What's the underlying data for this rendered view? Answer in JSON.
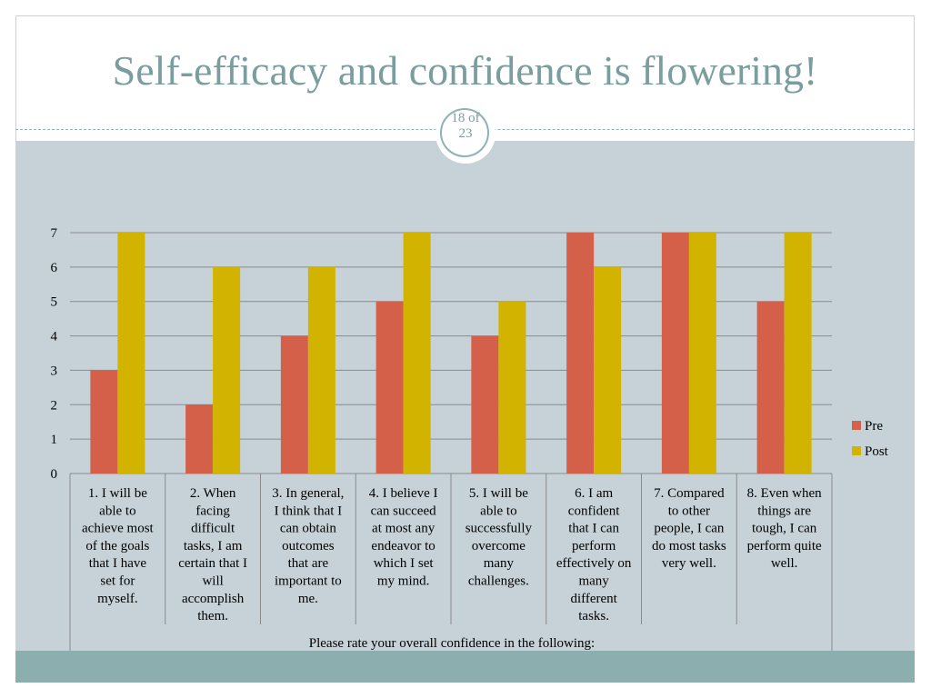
{
  "slide": {
    "title": "Self-efficacy and confidence is flowering!",
    "page_current": "18 of",
    "page_total": "23"
  },
  "colors": {
    "pre": "#d4604a",
    "post": "#d2b400",
    "title": "#7a9da0",
    "panel": "#c6d2d8",
    "band": "#8daeae"
  },
  "chart_data": {
    "type": "bar",
    "xlabel": "Please rate your overall confidence in the following:",
    "ylabel": "",
    "ylim": [
      0,
      7
    ],
    "yticks": [
      "0",
      "1",
      "2",
      "3",
      "4",
      "5",
      "6",
      "7"
    ],
    "grid": true,
    "legend_position": "right",
    "categories": [
      [
        "1. I will be",
        "able to",
        "achieve most",
        "of the goals",
        "that I have",
        "set for",
        "myself."
      ],
      [
        "2. When",
        "facing",
        "difficult",
        "tasks, I am",
        "certain that I",
        "will",
        "accomplish",
        "them."
      ],
      [
        "3. In general,",
        "I think that I",
        "can obtain",
        "outcomes",
        "that are",
        "important to",
        "me."
      ],
      [
        "4. I believe I",
        "can succeed",
        "at most any",
        "endeavor to",
        "which I set",
        "my mind."
      ],
      [
        "5. I will be",
        "able to",
        "successfully",
        "overcome",
        "many",
        "challenges."
      ],
      [
        "6. I am",
        "confident",
        "that I can",
        "perform",
        "effectively on",
        "many",
        "different",
        "tasks."
      ],
      [
        "7. Compared",
        "to other",
        "people, I can",
        "do most tasks",
        "very well."
      ],
      [
        "8. Even when",
        "things are",
        "tough, I can",
        "perform quite",
        "well."
      ]
    ],
    "series": [
      {
        "name": "Pre",
        "values": [
          3,
          2,
          4,
          5,
          4,
          7,
          7,
          5
        ]
      },
      {
        "name": "Post",
        "values": [
          7,
          6,
          6,
          7,
          5,
          6,
          7,
          7
        ]
      }
    ]
  }
}
